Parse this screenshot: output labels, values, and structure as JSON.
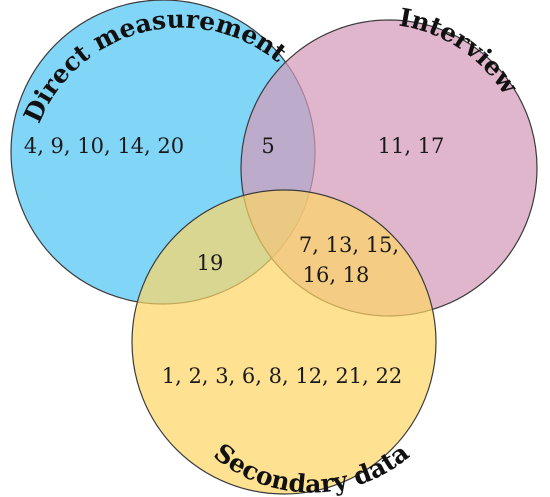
{
  "venn": {
    "sets": [
      {
        "label": "Direct measurement",
        "color": "#6fd0f7"
      },
      {
        "label": "Interview",
        "color": "#d49aba"
      },
      {
        "label": "Secondary data",
        "color": "#fdd664"
      }
    ],
    "regions": {
      "direct_only": "4, 9, 10, 14, 20",
      "direct_interview": "5",
      "interview_only": "11, 17",
      "direct_secondary": "19",
      "interview_secondary": [
        "7, 13, 15,",
        "16, 18"
      ],
      "secondary_only": "1, 2, 3, 6, 8, 12, 21, 22"
    }
  }
}
